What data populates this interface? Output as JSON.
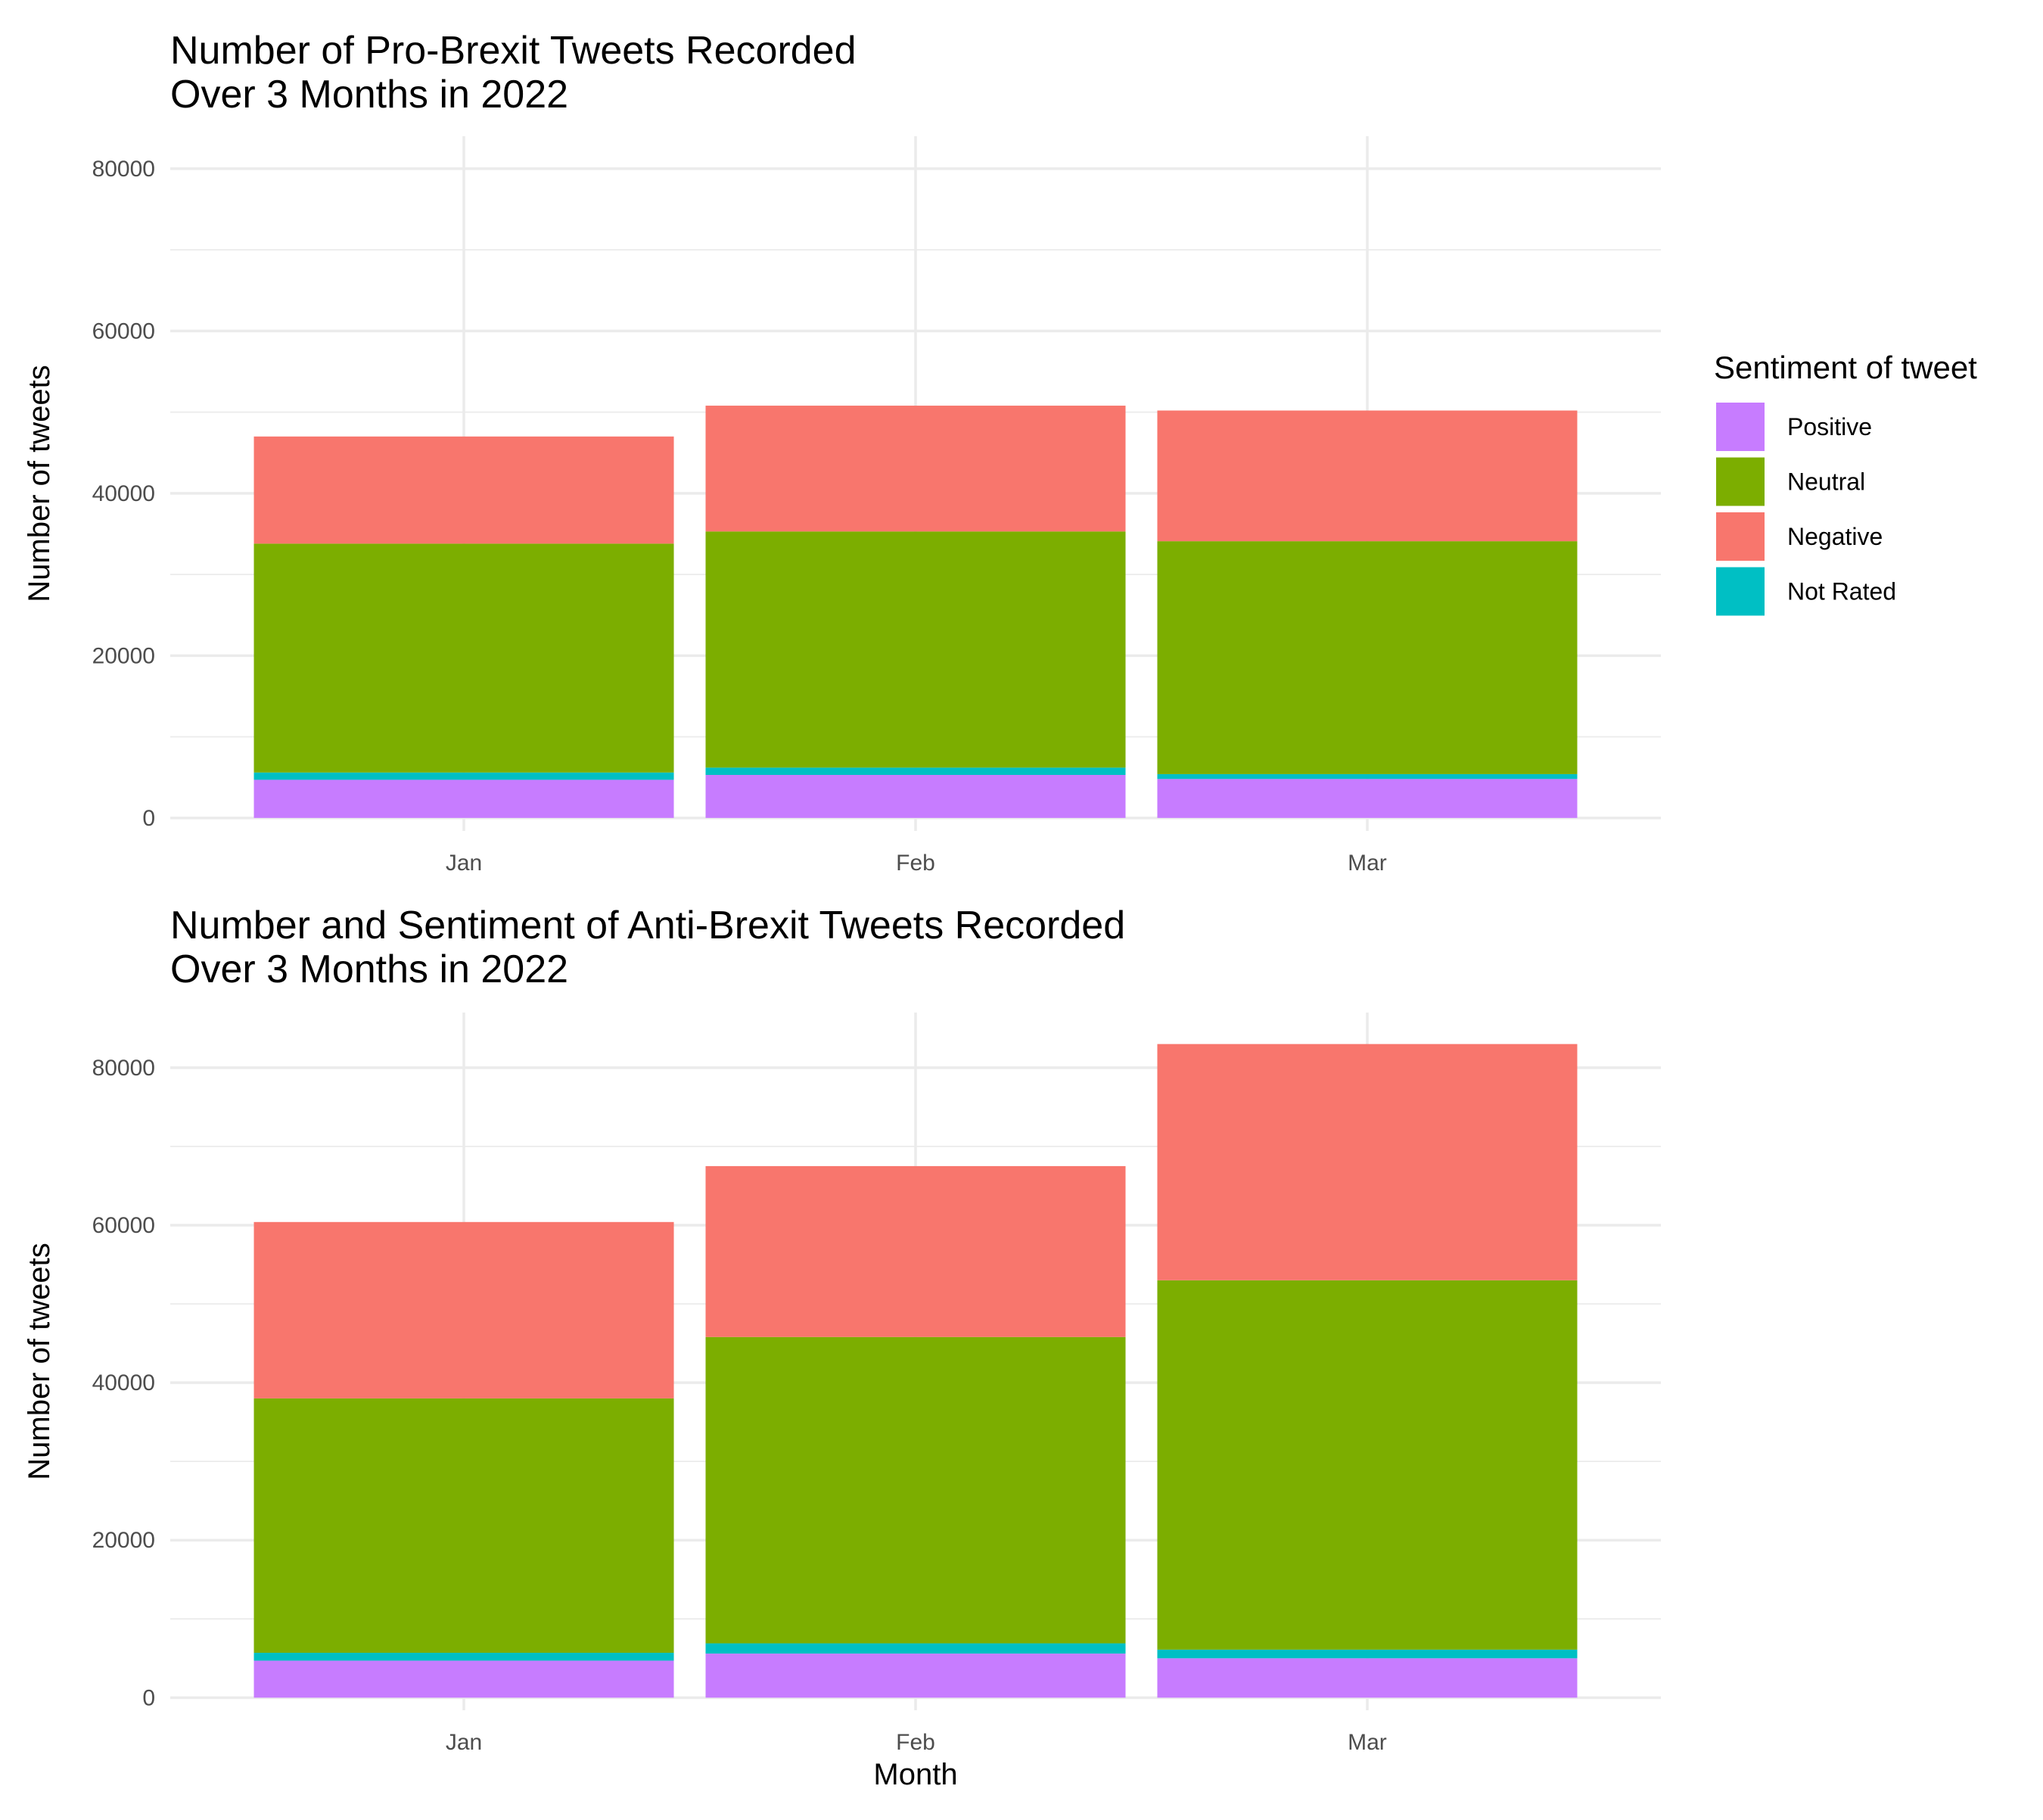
{
  "chart_data": [
    {
      "type": "bar",
      "stacked": true,
      "title_lines": [
        "Number of Pro-Brexit Tweets Recorded",
        "Over 3 Months in 2022"
      ],
      "xlabel": "",
      "ylabel": "Number of tweets",
      "categories": [
        "Jan",
        "Feb",
        "Mar"
      ],
      "ylim": [
        -1600,
        84000
      ],
      "yticks": [
        0,
        20000,
        40000,
        60000,
        80000
      ],
      "tick_labels": [
        "0",
        "20000",
        "40000",
        "60000",
        "80000"
      ],
      "grid": true,
      "series": [
        {
          "name": "Positive",
          "values": [
            4700,
            5300,
            4800
          ]
        },
        {
          "name": "Not Rated",
          "values": [
            900,
            900,
            600
          ]
        },
        {
          "name": "Neutral",
          "values": [
            28200,
            29100,
            28700
          ]
        },
        {
          "name": "Negative",
          "values": [
            13200,
            15500,
            16100
          ]
        }
      ]
    },
    {
      "type": "bar",
      "stacked": true,
      "title_lines": [
        "Number and Sentiment of Anti-Brexit Tweets Recorded",
        "Over 3 Months in 2022"
      ],
      "xlabel": "Month",
      "ylabel": "Number of tweets",
      "categories": [
        "Jan",
        "Feb",
        "Mar"
      ],
      "ylim": [
        -1600,
        87000
      ],
      "yticks": [
        0,
        20000,
        40000,
        60000,
        80000
      ],
      "tick_labels": [
        "0",
        "20000",
        "40000",
        "60000",
        "80000"
      ],
      "grid": true,
      "series": [
        {
          "name": "Positive",
          "values": [
            4700,
            5600,
            5000
          ]
        },
        {
          "name": "Not Rated",
          "values": [
            1000,
            1300,
            1100
          ]
        },
        {
          "name": "Neutral",
          "values": [
            32300,
            38900,
            46900
          ]
        },
        {
          "name": "Negative",
          "values": [
            22400,
            21700,
            30000
          ]
        }
      ]
    }
  ],
  "legend": {
    "title": "Sentiment of tweet",
    "placement": "right",
    "items": [
      {
        "label": "Positive",
        "color": "#C77CFF"
      },
      {
        "label": "Neutral",
        "color": "#7CAE00"
      },
      {
        "label": "Negative",
        "color": "#F8766D"
      },
      {
        "label": "Not Rated",
        "color": "#00BFC4"
      }
    ]
  },
  "colors": {
    "Positive": "#C77CFF",
    "Not Rated": "#00BFC4",
    "Neutral": "#7CAE00",
    "Negative": "#F8766D",
    "grid": "#EBEBEB",
    "text": "#000000",
    "tick_text": "#4D4D4D"
  }
}
